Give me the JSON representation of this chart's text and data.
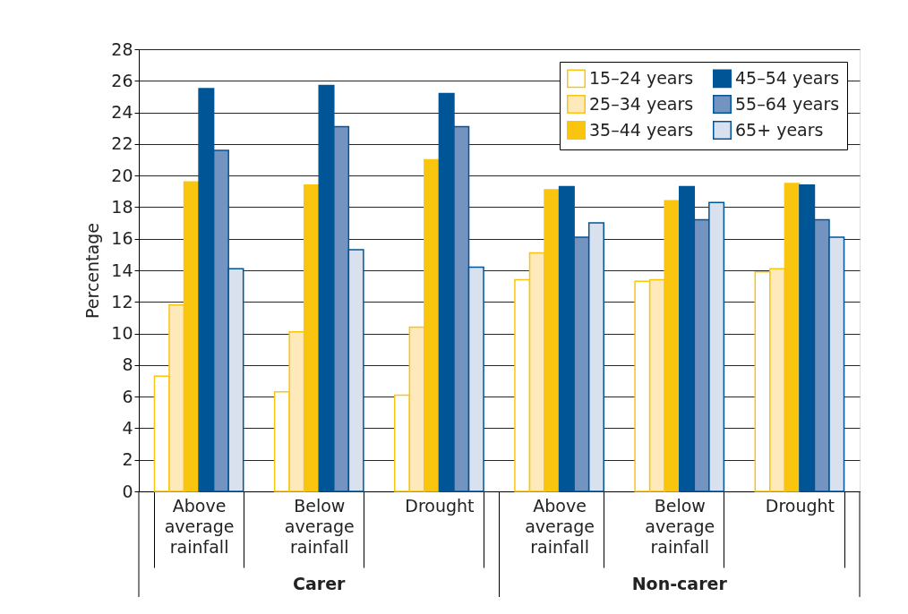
{
  "chart_data": {
    "type": "bar",
    "ylabel": "Percentage",
    "categories": [
      "Above average rainfall",
      "Below average rainfall",
      "Drought",
      "Above average rainfall",
      "Below average rainfall",
      "Drought"
    ],
    "annotations": [
      "Carer",
      "Non-carer"
    ],
    "series": [
      {
        "name": "15–24 years",
        "color": "#ffffff",
        "values": [
          7.3,
          6.3,
          6.1,
          13.4,
          13.3,
          13.9
        ]
      },
      {
        "name": "25–34 years",
        "color": "#fde9b9",
        "values": [
          11.8,
          10.1,
          10.4,
          15.1,
          13.4,
          14.1
        ]
      },
      {
        "name": "35–44 years",
        "color": "#fac50f",
        "values": [
          19.6,
          19.4,
          21.0,
          19.1,
          18.4,
          19.5
        ]
      },
      {
        "name": "45–54 years",
        "color": "#005596",
        "values": [
          25.5,
          25.7,
          25.2,
          19.3,
          19.3,
          19.4
        ]
      },
      {
        "name": "55–64 years",
        "color": "#7393c1",
        "values": [
          21.6,
          23.1,
          23.1,
          16.1,
          17.2,
          17.2
        ]
      },
      {
        "name": "65+ years",
        "color": "#d9e0ee",
        "values": [
          14.1,
          15.3,
          14.2,
          17.0,
          18.3,
          16.1
        ]
      }
    ],
    "ylim": [
      0,
      28
    ],
    "yticks": [
      0,
      2,
      4,
      6,
      8,
      10,
      12,
      14,
      16,
      18,
      20,
      22,
      24,
      26,
      28
    ],
    "grid": "y",
    "legend": "top right"
  }
}
